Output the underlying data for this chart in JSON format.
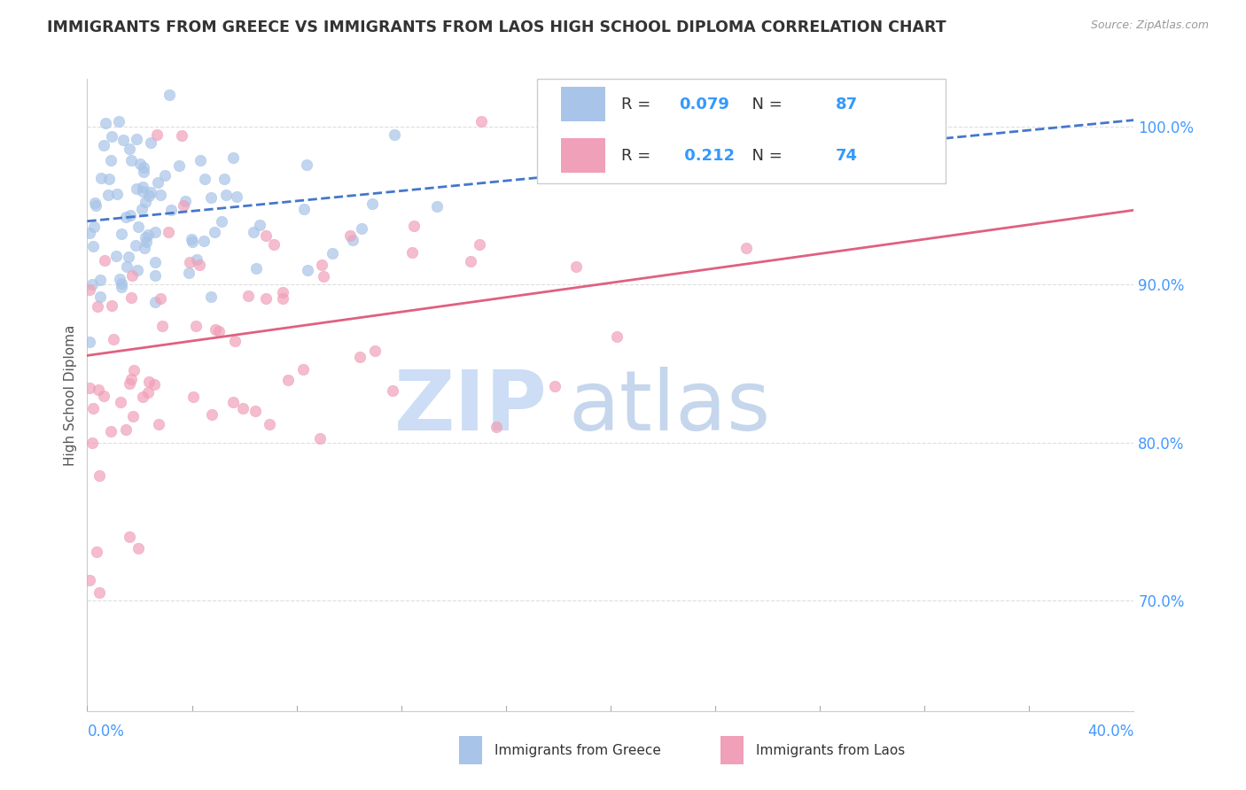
{
  "title": "IMMIGRANTS FROM GREECE VS IMMIGRANTS FROM LAOS HIGH SCHOOL DIPLOMA CORRELATION CHART",
  "source": "Source: ZipAtlas.com",
  "ylabel": "High School Diploma",
  "ytick_values": [
    0.7,
    0.8,
    0.9,
    1.0
  ],
  "xlim": [
    0.0,
    0.4
  ],
  "ylim": [
    0.63,
    1.03
  ],
  "greece_R": 0.079,
  "greece_N": 87,
  "laos_R": 0.212,
  "laos_N": 74,
  "greece_color": "#a8c4e8",
  "laos_color": "#f0a0b8",
  "greece_line_color": "#4477cc",
  "laos_line_color": "#e06080",
  "watermark_zip": "ZIP",
  "watermark_atlas": "atlas",
  "watermark_color": "#ccddf5",
  "legend_value_color": "#3399ff",
  "background_color": "#ffffff",
  "grid_color": "#dddddd",
  "title_color": "#333333",
  "title_fontsize": 12.5,
  "axis_label_color": "#4499ff",
  "greece_line_intercept": 0.94,
  "greece_line_slope": 0.16,
  "laos_line_intercept": 0.855,
  "laos_line_slope": 0.23
}
